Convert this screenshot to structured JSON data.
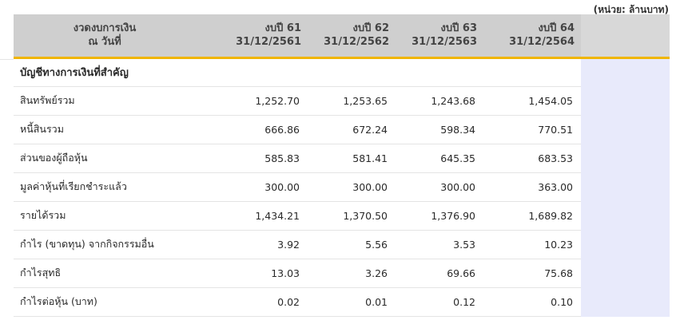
{
  "unit_note": "(หน่วย: ล้านบาท)",
  "header": {
    "label_line1": "งวดงบการเงิน",
    "label_line2": "ณ วันที่",
    "years": [
      {
        "name": "งบปี 61",
        "date": "31/12/2561"
      },
      {
        "name": "งบปี 62",
        "date": "31/12/2562"
      },
      {
        "name": "งบปี 63",
        "date": "31/12/2563"
      },
      {
        "name": "งบปี 64",
        "date": "31/12/2564"
      }
    ]
  },
  "section_title": "บัญชีทางการเงินที่สำคัญ",
  "rows": [
    {
      "label": "สินทรัพย์รวม",
      "values": [
        "1,252.70",
        "1,253.65",
        "1,243.68",
        "1,454.05"
      ]
    },
    {
      "label": "หนี้สินรวม",
      "values": [
        "666.86",
        "672.24",
        "598.34",
        "770.51"
      ]
    },
    {
      "label": "ส่วนของผู้ถือหุ้น",
      "values": [
        "585.83",
        "581.41",
        "645.35",
        "683.53"
      ]
    },
    {
      "label": "มูลค่าหุ้นที่เรียกชำระแล้ว",
      "values": [
        "300.00",
        "300.00",
        "300.00",
        "363.00"
      ]
    },
    {
      "label": "รายได้รวม",
      "values": [
        "1,434.21",
        "1,370.50",
        "1,376.90",
        "1,689.82"
      ]
    },
    {
      "label": "กำไร (ขาดทุน) จากกิจกรรมอื่น",
      "values": [
        "3.92",
        "5.56",
        "3.53",
        "10.23"
      ]
    },
    {
      "label": "กำไรสุทธิ",
      "values": [
        "13.03",
        "3.26",
        "69.66",
        "75.68"
      ]
    },
    {
      "label": "กำไรต่อหุ้น (บาท)",
      "values": [
        "0.02",
        "0.01",
        "0.12",
        "0.10"
      ]
    }
  ]
}
